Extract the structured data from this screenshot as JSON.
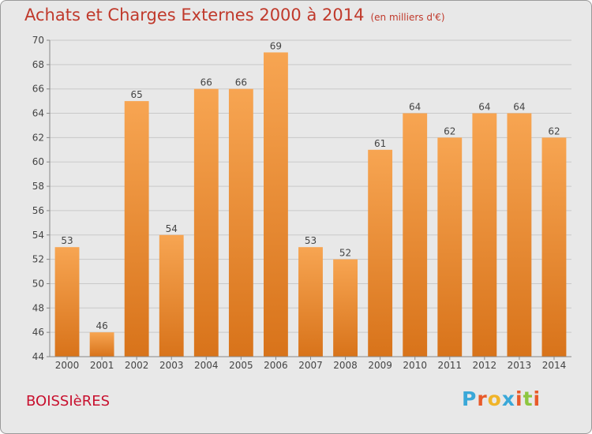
{
  "header": {
    "title": "Achats et Charges Externes 2000 à 2014",
    "subtitle": "(en milliers d'€)"
  },
  "footer": {
    "commune": "BOISSIèRES",
    "brand": "Proxiti",
    "brand_colors": [
      "#3aa8d8",
      "#e85a2a",
      "#f0b429",
      "#3aa8d8",
      "#e85a2a",
      "#8dc63f",
      "#e85a2a"
    ]
  },
  "chart_data": {
    "type": "bar",
    "title": "Achats et Charges Externes 2000 à 2014",
    "unit": "(en milliers d'€)",
    "categories": [
      "2000",
      "2001",
      "2002",
      "2003",
      "2004",
      "2005",
      "2006",
      "2007",
      "2008",
      "2009",
      "2010",
      "2011",
      "2012",
      "2013",
      "2014"
    ],
    "values": [
      53,
      46,
      65,
      54,
      66,
      66,
      69,
      53,
      52,
      61,
      64,
      62,
      64,
      64,
      62
    ],
    "ylim": [
      44,
      70
    ],
    "yticks": [
      44,
      46,
      48,
      50,
      52,
      54,
      56,
      58,
      60,
      62,
      64,
      66,
      68,
      70
    ],
    "grid": true,
    "bar_color_top": "#f7a552",
    "bar_color_bottom": "#d8731a"
  }
}
